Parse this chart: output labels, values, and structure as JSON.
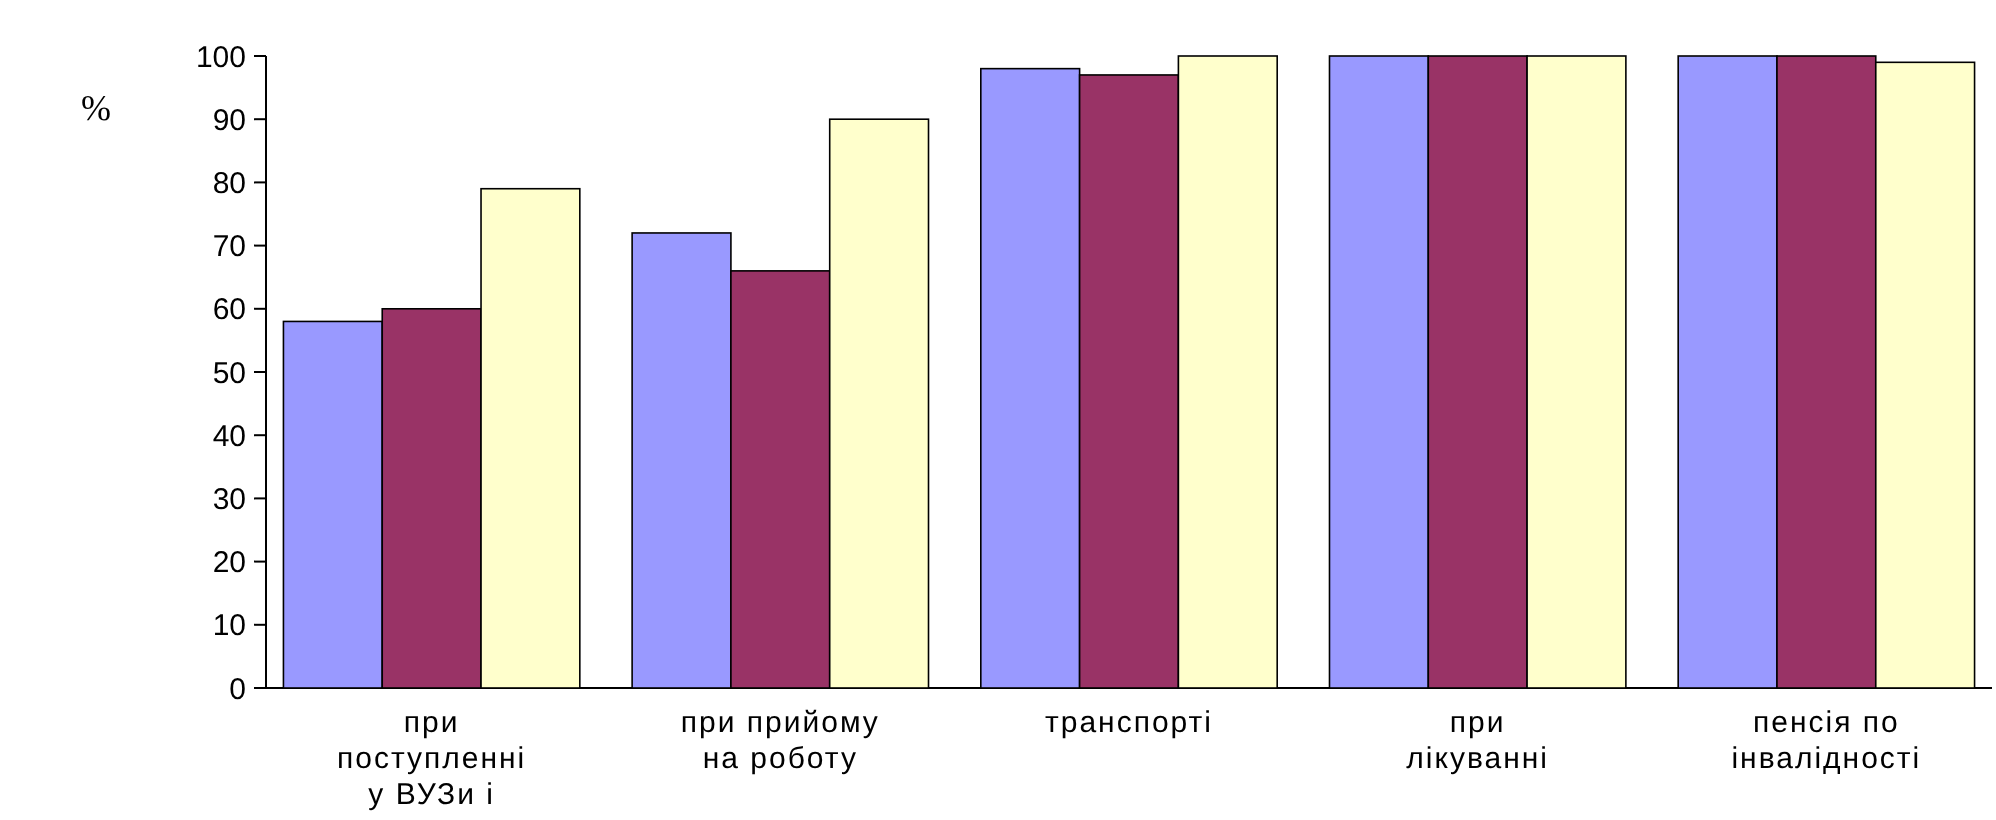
{
  "chart_data": {
    "type": "bar",
    "ylabel": "%",
    "categories": [
      "при\nпоступленні\nу ВУЗи і",
      "при прийому\nна роботу",
      "транспорті",
      "при\nлікуванні",
      "пенсія по\nінвалідності"
    ],
    "series": [
      {
        "color": "#9999ff",
        "values": [
          58,
          72,
          98,
          100,
          100
        ]
      },
      {
        "color": "#993366",
        "values": [
          60,
          66,
          97,
          100,
          100
        ]
      },
      {
        "color": "#ffffcc",
        "values": [
          79,
          90,
          100,
          100,
          99
        ]
      }
    ],
    "ylim": [
      0,
      100
    ],
    "yticks": [
      0,
      10,
      20,
      30,
      40,
      50,
      60,
      70,
      80,
      90,
      100
    ]
  }
}
